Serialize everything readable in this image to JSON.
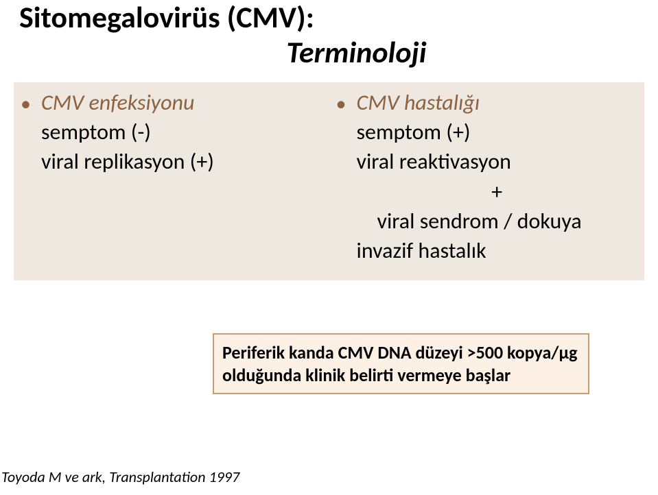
{
  "title": {
    "line1": "Sitomegalovirüs (CMV):",
    "line2": "Terminoloji"
  },
  "left": {
    "heading": "CMV enfeksiyonu",
    "row1": "semptom (-)",
    "row2": "viral replikasyon (+)"
  },
  "right": {
    "heading": "CMV hastalığı",
    "row1": "semptom (+)",
    "row2": "viral reaktivasyon",
    "row3": "+",
    "row4": "viral sendrom / dokuya",
    "row5": "invazif hastalık"
  },
  "callout": {
    "line1": "Periferik kanda CMV DNA düzeyi >500 kopya/µg",
    "line2": "olduğunda klinik belirti vermeye başlar"
  },
  "citation": "Toyoda M ve ark, Transplantation 1997",
  "colors": {
    "panel_bg": "#eee8e0",
    "bullet_accent": "#8d6240",
    "callout_border": "#c59d75",
    "callout_bg": "#fdf1e5",
    "text": "#000000"
  }
}
